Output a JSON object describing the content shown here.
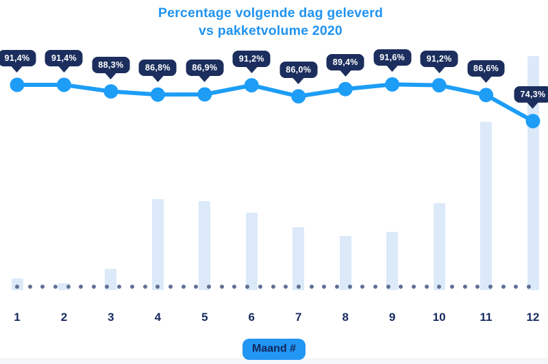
{
  "title": {
    "line1": "Percentage volgende dag geleverd",
    "line2": "vs pakketvolume 2020"
  },
  "x_axis": {
    "label": "Maand #",
    "categories": [
      "1",
      "2",
      "3",
      "4",
      "5",
      "6",
      "7",
      "8",
      "9",
      "10",
      "11",
      "12"
    ]
  },
  "chart_data": {
    "type": "combo",
    "title": "Percentage volgende dag geleverd vs pakketvolume 2020",
    "xlabel": "Maand #",
    "categories": [
      "1",
      "2",
      "3",
      "4",
      "5",
      "6",
      "7",
      "8",
      "9",
      "10",
      "11",
      "12"
    ],
    "series": [
      {
        "name": "Percentage volgende dag geleverd",
        "type": "line",
        "unit": "%",
        "values": [
          91.4,
          91.4,
          88.3,
          86.8,
          86.9,
          91.2,
          86.0,
          89.4,
          91.6,
          91.2,
          86.6,
          74.3
        ],
        "labels": [
          "91,4%",
          "91,4%",
          "88,3%",
          "86,8%",
          "86,9%",
          "91,2%",
          "86,0%",
          "89,4%",
          "91,6%",
          "91,2%",
          "86,6%",
          "74,3%"
        ]
      },
      {
        "name": "Pakketvolume 2020",
        "type": "bar",
        "unit": "relative volume, % of max (estimated from bar heights)",
        "values": [
          5,
          3,
          9,
          39,
          38,
          33,
          27,
          23,
          25,
          37,
          72,
          100
        ]
      }
    ],
    "legend": "none",
    "grid": false,
    "baseline_style": "dotted"
  },
  "colors": {
    "title": "#2093f0",
    "line": "#1d9df6",
    "marker": "#1d9df6",
    "tooltip_bg": "#1c2e5d",
    "tooltip_text": "#ffffff",
    "bar": "#dbe9f9",
    "baseline_dot": "#5e7093",
    "month_label": "#152a5e",
    "pill_bg": "#2196f3",
    "pill_text": "#13265b"
  }
}
